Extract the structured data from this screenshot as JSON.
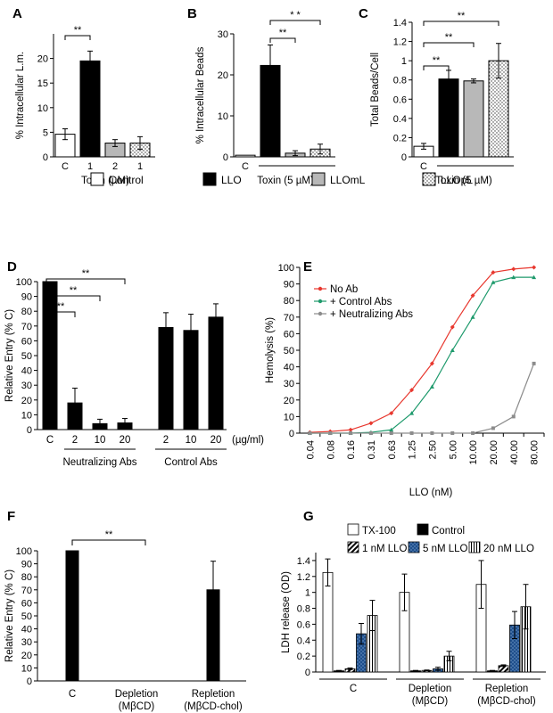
{
  "legend_top": [
    {
      "label": "Control",
      "fill": "#ffffff"
    },
    {
      "label": "LLO",
      "fill": "#000000"
    },
    {
      "label": "LLOmL",
      "fill": "#b8b8b8"
    },
    {
      "label": "LLOpL",
      "fill": "dots"
    }
  ],
  "sig_mark": "**",
  "chart_data": [
    {
      "panel": "A",
      "type": "bar",
      "categories": [
        "C",
        "1",
        "2",
        "1"
      ],
      "fills": [
        "#ffffff",
        "#000000",
        "#b8b8b8",
        "dots"
      ],
      "values": [
        4.6,
        19.5,
        2.8,
        2.8
      ],
      "errors": [
        1.1,
        2.0,
        0.7,
        1.3
      ],
      "ylabel": "% Intracellular L.m.",
      "xlabel": "Toxin (µM)",
      "ylim": [
        0,
        25
      ],
      "yticks": [
        "0",
        "5",
        "10",
        "15",
        "20"
      ],
      "ytick_values": [
        0,
        5,
        10,
        15,
        20
      ],
      "sig": [
        {
          "from": 0,
          "to": 1,
          "label": "**"
        }
      ]
    },
    {
      "panel": "B",
      "type": "bar",
      "categories": [
        "C",
        "",
        "",
        ""
      ],
      "fills": [
        "#ffffff",
        "#000000",
        "#b8b8b8",
        "dots"
      ],
      "values": [
        0.4,
        22.3,
        0.9,
        1.9
      ],
      "errors": [
        0.0,
        5.0,
        0.6,
        1.2
      ],
      "ylabel": "% Intracellular Beads",
      "xlabel": "Toxin (5 µM)",
      "ylim": [
        0,
        30
      ],
      "yticks": [
        "0",
        "10",
        "20",
        "30"
      ],
      "ytick_values": [
        0,
        10,
        20,
        30
      ],
      "sig": [
        {
          "from": 1,
          "to": 2,
          "label": "**"
        },
        {
          "from": 1,
          "to": 3,
          "label": "* *"
        }
      ]
    },
    {
      "panel": "C",
      "type": "bar",
      "categories": [
        "C",
        "",
        "",
        ""
      ],
      "fills": [
        "#ffffff",
        "#000000",
        "#b8b8b8",
        "dots"
      ],
      "values": [
        0.11,
        0.81,
        0.79,
        1.0
      ],
      "errors": [
        0.03,
        0.09,
        0.02,
        0.18
      ],
      "ylabel": "Total Beads/Cell",
      "xlabel": "Toxin (5 µM)",
      "ylim": [
        0,
        1.4
      ],
      "yticks": [
        "0",
        "0.2",
        "0.4",
        "0.6",
        "0.8",
        "1",
        "1.2",
        "1.4"
      ],
      "ytick_values": [
        0,
        0.2,
        0.4,
        0.6,
        0.8,
        1.0,
        1.2,
        1.4
      ],
      "sig": [
        {
          "from": 0,
          "to": 1,
          "label": "**"
        },
        {
          "from": 0,
          "to": 2,
          "label": "**"
        },
        {
          "from": 0,
          "to": 3,
          "label": "**"
        }
      ]
    },
    {
      "panel": "D",
      "type": "bar",
      "categories": [
        "C",
        "2",
        "10",
        "20",
        "2",
        "10",
        "20"
      ],
      "values": [
        100,
        18,
        4,
        4.5,
        69,
        67,
        76
      ],
      "errors": [
        0,
        10,
        3,
        3,
        10,
        11,
        9
      ],
      "ylabel": "Relative Entry (% C)",
      "unit": "(µg/ml)",
      "groups": [
        {
          "label": "Neutralizing Abs",
          "from": 1,
          "to": 3
        },
        {
          "label": "Control Abs",
          "from": 4,
          "to": 6
        }
      ],
      "ylim": [
        0,
        100
      ],
      "yticks": [
        "0",
        "10",
        "20",
        "30",
        "40",
        "50",
        "60",
        "70",
        "80",
        "90",
        "100"
      ],
      "ytick_values": [
        0,
        10,
        20,
        30,
        40,
        50,
        60,
        70,
        80,
        90,
        100
      ],
      "sig": [
        {
          "from": 0,
          "to": 1,
          "label": "**"
        },
        {
          "from": 0,
          "to": 2,
          "label": "**"
        },
        {
          "from": 0,
          "to": 3,
          "label": "**"
        }
      ]
    },
    {
      "panel": "E",
      "type": "line",
      "x": [
        "0.04",
        "0.08",
        "0.16",
        "0.31",
        "0.63",
        "1.25",
        "2.50",
        "5.00",
        "10.00",
        "20.00",
        "40.00",
        "80.00"
      ],
      "series": [
        {
          "name": "No Ab",
          "color": "#e8382f",
          "marker": "diamond",
          "values": [
            0.5,
            1,
            2,
            6,
            12,
            26,
            42,
            64,
            83,
            97,
            99,
            100
          ]
        },
        {
          "name": "+ Control Abs",
          "color": "#1e9a6c",
          "marker": "triangle",
          "values": [
            0,
            0,
            0,
            0.5,
            2,
            12,
            28,
            50,
            70,
            91,
            94,
            94
          ]
        },
        {
          "name": "+ Neutralizing Abs",
          "color": "#8c8c8c",
          "marker": "square",
          "values": [
            0,
            0,
            0,
            0,
            0,
            0,
            0,
            0,
            0,
            3,
            10,
            42
          ]
        }
      ],
      "ylabel": "Hemolysis (%)",
      "xlabel": "LLO (nM)",
      "ylim": [
        0,
        100
      ],
      "yticks": [
        "0",
        "10",
        "20",
        "30",
        "40",
        "50",
        "60",
        "70",
        "80",
        "90",
        "100"
      ],
      "ytick_values": [
        0,
        10,
        20,
        30,
        40,
        50,
        60,
        70,
        80,
        90,
        100
      ]
    },
    {
      "panel": "F",
      "type": "bar",
      "categories": [
        "C",
        "Depletion\n(MβCD)",
        "Repletion\n(MβCD-chol)"
      ],
      "values": [
        100,
        0,
        70
      ],
      "errors": [
        0,
        0,
        22
      ],
      "ylabel": "Relative Entry (% C)",
      "ylim": [
        0,
        100
      ],
      "yticks": [
        "0",
        "10",
        "20",
        "30",
        "40",
        "50",
        "60",
        "70",
        "80",
        "90",
        "100"
      ],
      "ytick_values": [
        0,
        10,
        20,
        30,
        40,
        50,
        60,
        70,
        80,
        90,
        100
      ],
      "sig": [
        {
          "from": 0,
          "to": 1,
          "label": "**"
        }
      ]
    },
    {
      "panel": "G",
      "type": "bar",
      "categories": [
        "C",
        "Depletion\n(MβCD)",
        "Repletion\n(MβCD-chol)"
      ],
      "series": [
        {
          "name": "TX-100",
          "fill": "#ffffff",
          "values": [
            1.25,
            1.0,
            1.1
          ],
          "errors": [
            0.17,
            0.23,
            0.3
          ]
        },
        {
          "name": "Control",
          "fill": "#000000",
          "values": [
            0.015,
            0.015,
            0.015
          ],
          "errors": [
            0.005,
            0.005,
            0.005
          ]
        },
        {
          "name": "1 nM LLO",
          "fill": "hatch",
          "values": [
            0.04,
            0.02,
            0.08
          ],
          "errors": [
            0.01,
            0.005,
            0.01
          ]
        },
        {
          "name": "5 nM LLO",
          "fill": "blue",
          "values": [
            0.48,
            0.04,
            0.59
          ],
          "errors": [
            0.13,
            0.02,
            0.17
          ]
        },
        {
          "name": "20 nM LLO",
          "fill": "vlines",
          "values": [
            0.71,
            0.2,
            0.82
          ],
          "errors": [
            0.19,
            0.06,
            0.28
          ]
        }
      ],
      "ylabel": "LDH release (OD)",
      "ylim": [
        0,
        1.5
      ],
      "yticks": [
        "0",
        "0.2",
        "0.4",
        "0.6",
        "0.8",
        "1",
        "1.2",
        "1.4"
      ],
      "ytick_values": [
        0,
        0.2,
        0.4,
        0.6,
        0.8,
        1.0,
        1.2,
        1.4
      ]
    }
  ]
}
